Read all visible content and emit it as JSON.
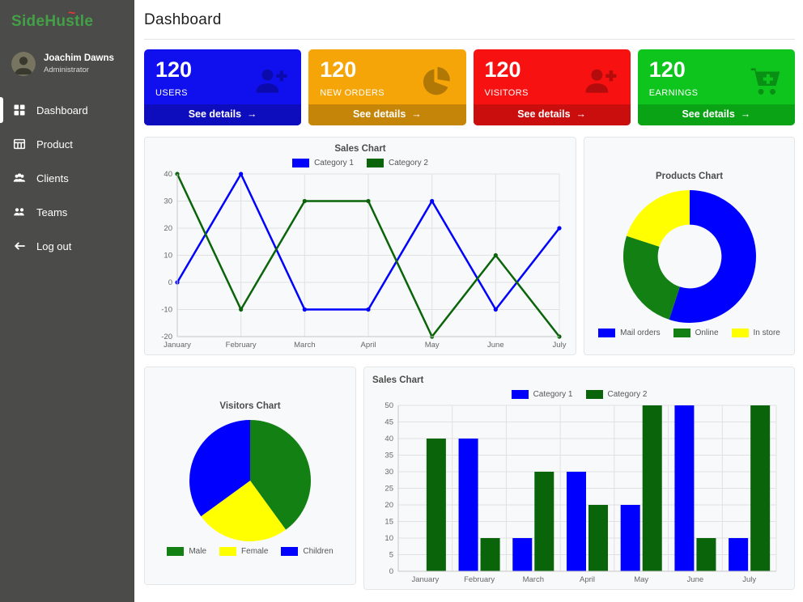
{
  "sidebar": {
    "logo": {
      "part1": "Side",
      "part2": "Hustle",
      "accent": "~",
      "color": "#43a047",
      "accent_color": "#e53935"
    },
    "user": {
      "name": "Joachim Dawns",
      "role": "Administrator"
    },
    "items": [
      {
        "label": "Dashboard",
        "icon": "dashboard-grid-icon",
        "active": true
      },
      {
        "label": "Product",
        "icon": "product-table-icon",
        "active": false
      },
      {
        "label": "Clients",
        "icon": "clients-people-icon",
        "active": false
      },
      {
        "label": "Teams",
        "icon": "teams-people-icon",
        "active": false
      },
      {
        "label": "Log out",
        "icon": "logout-arrow-icon",
        "active": false
      }
    ]
  },
  "header": {
    "title": "Dashboard"
  },
  "cards": [
    {
      "value": "120",
      "label": "USERS",
      "details_label": "See details",
      "arrow": "→",
      "icon": "user-plus-icon",
      "bg": "#1010ee",
      "footer_bg": "#0d0dbe"
    },
    {
      "value": "120",
      "label": "NEW ORDERS",
      "details_label": "See details",
      "arrow": "→",
      "icon": "pie-chart-icon",
      "bg": "#f5a508",
      "footer_bg": "#c58508"
    },
    {
      "value": "120",
      "label": "VISITORS",
      "details_label": "See details",
      "arrow": "→",
      "icon": "user-plus-icon",
      "bg": "#f71111",
      "footer_bg": "#ca0d0d"
    },
    {
      "value": "120",
      "label": "EARNINGS",
      "details_label": "See details",
      "arrow": "→",
      "icon": "cart-plus-icon",
      "bg": "#0ec51e",
      "footer_bg": "#0aa316"
    }
  ],
  "chart_data": [
    {
      "type": "line",
      "title": "Sales Chart",
      "categories": [
        "January",
        "February",
        "March",
        "April",
        "May",
        "June",
        "July"
      ],
      "series": [
        {
          "name": "Category 1",
          "color": "#0000ff",
          "values": [
            0,
            40,
            -10,
            -10,
            30,
            -10,
            20
          ]
        },
        {
          "name": "Category 2",
          "color": "#0a640a",
          "values": [
            40,
            -10,
            30,
            30,
            -20,
            10,
            -20
          ]
        }
      ],
      "ylim": [
        -20,
        40
      ],
      "ytick_step": 10,
      "grid": true,
      "legend_position": "top-center"
    },
    {
      "type": "doughnut",
      "title": "Products Chart",
      "labels": [
        "Mail orders",
        "Online",
        "In store"
      ],
      "values": [
        55,
        25,
        20
      ],
      "colors": [
        "#0000ff",
        "#128012",
        "#ffff00"
      ],
      "legend_position": "bottom-center"
    },
    {
      "type": "pie",
      "title": "Visitors Chart",
      "labels": [
        "Male",
        "Female",
        "Children"
      ],
      "values": [
        40,
        25,
        35
      ],
      "colors": [
        "#128012",
        "#ffff00",
        "#0000ff"
      ],
      "legend_position": "bottom-center"
    },
    {
      "type": "bar",
      "title": "Sales Chart",
      "categories": [
        "January",
        "February",
        "March",
        "April",
        "May",
        "June",
        "July"
      ],
      "series": [
        {
          "name": "Category 1",
          "color": "#0000ff",
          "values": [
            0,
            40,
            10,
            30,
            20,
            50,
            10
          ]
        },
        {
          "name": "Category 2",
          "color": "#0a640a",
          "values": [
            40,
            10,
            30,
            20,
            50,
            10,
            50
          ]
        }
      ],
      "ylim": [
        0,
        50
      ],
      "ytick_step": 5,
      "grid": true,
      "legend_position": "top-center"
    }
  ]
}
